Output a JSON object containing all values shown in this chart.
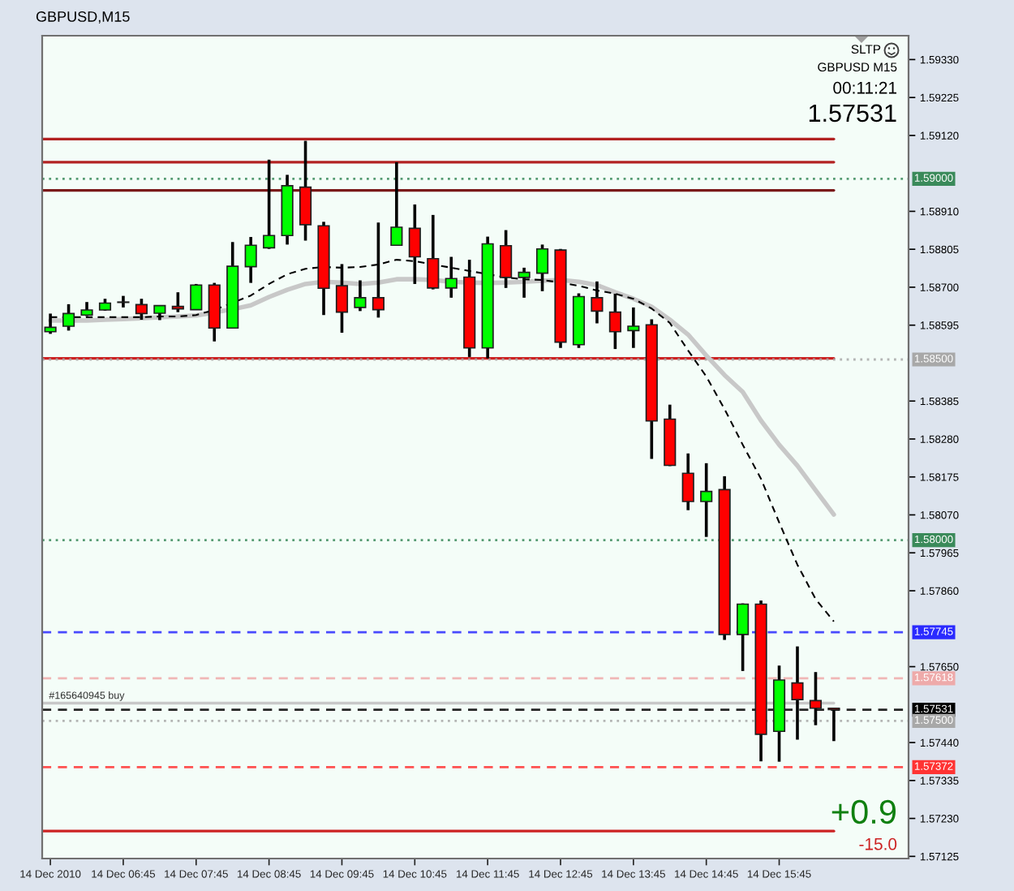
{
  "chart_data": {
    "type": "candlestick",
    "title": "GBPUSD,M15",
    "categories": [
      "14 Dec 2010",
      null,
      null,
      null,
      "14 Dec 06:45",
      null,
      null,
      null,
      "14 Dec 07:45",
      null,
      null,
      null,
      "14 Dec 08:45",
      null,
      null,
      null,
      "14 Dec 09:45",
      null,
      null,
      null,
      "14 Dec 10:45",
      null,
      null,
      null,
      "14 Dec 11:45",
      null,
      null,
      null,
      "14 Dec 12:45",
      null,
      null,
      null,
      "14 Dec 13:45",
      null,
      null,
      null,
      "14 Dec 14:45",
      null,
      null,
      null,
      "14 Dec 15:45",
      null,
      null,
      null
    ],
    "ohlc": [
      [
        1.58577,
        1.58627,
        1.58571,
        1.58589
      ],
      [
        1.58592,
        1.58653,
        1.5858,
        1.58627
      ],
      [
        1.58623,
        1.58659,
        1.5862,
        1.58637
      ],
      [
        1.58637,
        1.58668,
        1.58635,
        1.58656
      ],
      [
        1.58658,
        1.58676,
        1.58644,
        1.58659
      ],
      [
        1.58652,
        1.58668,
        1.5861,
        1.58627
      ],
      [
        1.58628,
        1.5865,
        1.58609,
        1.58649
      ],
      [
        1.58647,
        1.58686,
        1.58631,
        1.5864
      ],
      [
        1.58638,
        1.58709,
        1.58637,
        1.58706
      ],
      [
        1.58706,
        1.58712,
        1.5855,
        1.58587
      ],
      [
        1.58587,
        1.58825,
        1.58587,
        1.58758
      ],
      [
        1.58757,
        1.58839,
        1.58712,
        1.58816
      ],
      [
        1.58809,
        1.59053,
        1.58806,
        1.58843
      ],
      [
        1.58843,
        1.59011,
        1.58818,
        1.58981
      ],
      [
        1.58977,
        1.59105,
        1.58829,
        1.58873
      ],
      [
        1.5887,
        1.58881,
        1.58623,
        1.58697
      ],
      [
        1.58704,
        1.58764,
        1.58574,
        1.58631
      ],
      [
        1.58644,
        1.58719,
        1.58634,
        1.58671
      ],
      [
        1.58671,
        1.58879,
        1.58616,
        1.58638
      ],
      [
        1.58816,
        1.59046,
        1.58816,
        1.58866
      ],
      [
        1.58863,
        1.58929,
        1.58709,
        1.58784
      ],
      [
        1.58779,
        1.589,
        1.58694,
        1.58698
      ],
      [
        1.58698,
        1.58784,
        1.58671,
        1.58724
      ],
      [
        1.58728,
        1.58776,
        1.58507,
        1.58532
      ],
      [
        1.58532,
        1.5884,
        1.58503,
        1.5882
      ],
      [
        1.58815,
        1.58858,
        1.58698,
        1.58727
      ],
      [
        1.58727,
        1.58754,
        1.58671,
        1.58741
      ],
      [
        1.58739,
        1.58818,
        1.58689,
        1.58806
      ],
      [
        1.58803,
        1.58806,
        1.58532,
        1.58548
      ],
      [
        1.58541,
        1.58683,
        1.58532,
        1.58674
      ],
      [
        1.58671,
        1.58716,
        1.586,
        1.58634
      ],
      [
        1.58631,
        1.58682,
        1.58529,
        1.58577
      ],
      [
        1.5858,
        1.58644,
        1.58532,
        1.58592
      ],
      [
        1.58596,
        1.58611,
        1.58225,
        1.5833
      ],
      [
        1.58335,
        1.58375,
        1.58205,
        1.58207
      ],
      [
        1.58185,
        1.5824,
        1.58083,
        1.58107
      ],
      [
        1.58107,
        1.58213,
        1.58009,
        1.58135
      ],
      [
        1.5814,
        1.58177,
        1.57724,
        1.57739
      ],
      [
        1.57739,
        1.57825,
        1.57638,
        1.57823
      ],
      [
        1.57823,
        1.57833,
        1.57388,
        1.57463
      ],
      [
        1.57471,
        1.57653,
        1.57387,
        1.57613
      ],
      [
        1.57605,
        1.57706,
        1.57448,
        1.57559
      ],
      [
        1.57556,
        1.57635,
        1.57488,
        1.57535
      ],
      [
        1.57535,
        1.57536,
        1.57444,
        1.57531
      ]
    ],
    "colors": [
      "#00ff00",
      "#00ff00",
      "#00ff00",
      "#00ff00",
      "#00ff00",
      "#ff0000",
      "#00ff00",
      "#ff0000",
      "#00ff00",
      "#ff0000",
      "#00ff00",
      "#00ff00",
      "#00ff00",
      "#00ff00",
      "#ff0000",
      "#ff0000",
      "#ff0000",
      "#00ff00",
      "#ff0000",
      "#00ff00",
      "#ff0000",
      "#ff0000",
      "#00ff00",
      "#ff0000",
      "#00ff00",
      "#ff0000",
      "#00ff00",
      "#00ff00",
      "#ff0000",
      "#00ff00",
      "#ff0000",
      "#ff0000",
      "#00ff00",
      "#ff0000",
      "#ff0000",
      "#ff0000",
      "#00ff00",
      "#ff0000",
      "#00ff00",
      "#ff0000",
      "#00ff00",
      "#ff0000",
      "#ff0000",
      "#ff0000"
    ],
    "series": [
      {
        "type": "line",
        "color": "#c8c8c8",
        "line_style": "solid",
        "values": [
          1.58608,
          1.58608,
          1.58608,
          1.5861,
          1.58612,
          1.58614,
          1.58617,
          1.58619,
          1.58622,
          1.5863,
          1.58639,
          1.5865,
          1.58673,
          1.58693,
          1.58709,
          1.58715,
          1.58713,
          1.58709,
          1.58713,
          1.58722,
          1.58722,
          1.5872,
          1.58715,
          1.58713,
          1.58712,
          1.58713,
          1.58715,
          1.58718,
          1.5872,
          1.58715,
          1.58706,
          1.58686,
          1.58668,
          1.58646,
          1.5861,
          1.58569,
          1.58511,
          1.58457,
          1.5841,
          1.58331,
          1.58264,
          1.58206,
          1.58138,
          1.58071
        ]
      },
      {
        "type": "line",
        "color": "#000000",
        "line_style": "dashed",
        "values": [
          1.58617,
          1.58617,
          1.58617,
          1.58617,
          1.58617,
          1.58617,
          1.58619,
          1.58619,
          1.58623,
          1.58637,
          1.58657,
          1.58677,
          1.58709,
          1.58736,
          1.58751,
          1.58756,
          1.58754,
          1.58756,
          1.58763,
          1.58776,
          1.58772,
          1.58763,
          1.58754,
          1.58745,
          1.58736,
          1.58727,
          1.58722,
          1.5872,
          1.58713,
          1.58704,
          1.58691,
          1.58682,
          1.58668,
          1.58641,
          1.58601,
          1.58525,
          1.58453,
          1.58363,
          1.58264,
          1.5817,
          1.58049,
          1.57932,
          1.57837,
          1.57775
        ]
      }
    ],
    "ylim": [
      1.57119,
      1.59396
    ],
    "yticks": [
      {
        "value": 1.5933,
        "label": "1.59330"
      },
      {
        "value": 1.59225,
        "label": "1.59225"
      },
      {
        "value": 1.5912,
        "label": "1.59120"
      },
      {
        "value": 1.5891,
        "label": "1.58910"
      },
      {
        "value": 1.58805,
        "label": "1.58805"
      },
      {
        "value": 1.587,
        "label": "1.58700"
      },
      {
        "value": 1.58595,
        "label": "1.58595"
      },
      {
        "value": 1.58385,
        "label": "1.58385"
      },
      {
        "value": 1.5828,
        "label": "1.58280"
      },
      {
        "value": 1.58175,
        "label": "1.58175"
      },
      {
        "value": 1.5807,
        "label": "1.58070"
      },
      {
        "value": 1.57965,
        "label": "1.57965"
      },
      {
        "value": 1.5786,
        "label": "1.57860"
      },
      {
        "value": 1.5765,
        "label": "1.57650"
      },
      {
        "value": 1.5744,
        "label": "1.57440"
      },
      {
        "value": 1.57335,
        "label": "1.57335"
      },
      {
        "value": 1.5723,
        "label": "1.57230"
      },
      {
        "value": 1.57125,
        "label": "1.57125"
      }
    ],
    "ref_lines": [
      {
        "axis": "y",
        "value": 1.5911,
        "color": "#b22222"
      },
      {
        "axis": "y",
        "value": 1.59046,
        "color": "#b22222"
      },
      {
        "axis": "y",
        "value": 1.58968,
        "color": "#7a1a1a"
      },
      {
        "axis": "y",
        "value": 1.58503,
        "color": "#cc2222"
      },
      {
        "axis": "y",
        "value": 1.57195,
        "color": "#cc2222"
      },
      {
        "axis": "y",
        "value": 1.57549,
        "color": "#c8c8c8"
      },
      {
        "axis": "y",
        "value": 1.59,
        "label": "1.59000",
        "color": "#3a8a5a",
        "line_style": "dotted"
      },
      {
        "axis": "y",
        "value": 1.585,
        "label": "1.58500",
        "color": "#a8a8a8",
        "line_style": "dotted"
      },
      {
        "axis": "y",
        "value": 1.58,
        "label": "1.58000",
        "color": "#3a8a5a",
        "line_style": "dotted"
      },
      {
        "axis": "y",
        "value": 1.57745,
        "label": "1.57745",
        "color": "#2a2aff",
        "line_style": "dashed"
      },
      {
        "axis": "y",
        "value": 1.57618,
        "label": "1.57618",
        "color": "#eeaaaa",
        "line_style": "dashed"
      },
      {
        "axis": "y",
        "value": 1.57531,
        "label": "1.57531",
        "color": "#000000",
        "line_style": "dashed"
      },
      {
        "axis": "y",
        "value": 1.575,
        "label": "1.57500",
        "color": "#a8a8a8",
        "line_style": "dotted"
      },
      {
        "axis": "y",
        "value": 1.57372,
        "label": "1.57372",
        "color": "#ff3333",
        "line_style": "dashed"
      }
    ],
    "annotations": [
      "SLTP",
      "GBPUSD M15",
      "00:11:21",
      "1.57531",
      "+0.9",
      "-15.0",
      {
        "text": "#165640945 buy",
        "y": 1.57549
      }
    ]
  }
}
